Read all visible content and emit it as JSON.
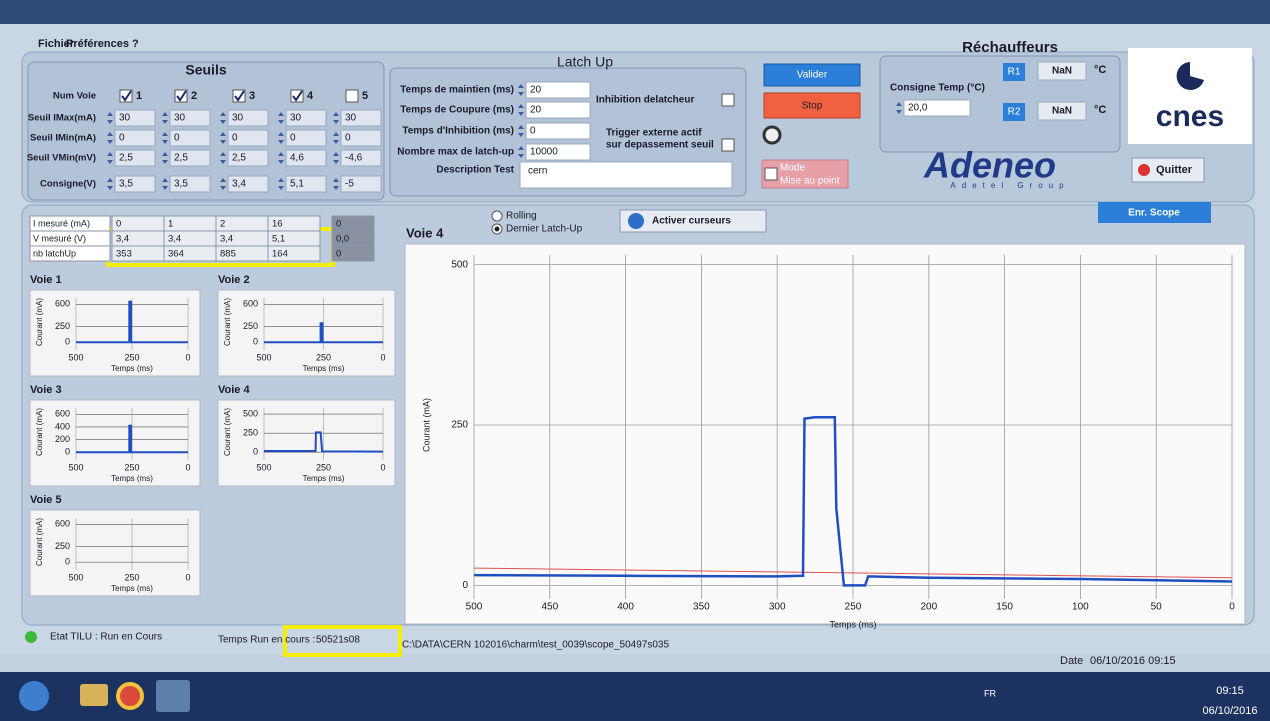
{
  "window": {
    "menu": [
      "Fichier",
      "Préférences",
      "?"
    ]
  },
  "seuils": {
    "title": "Seuils",
    "row_labels": [
      "Num Voie",
      "Seuil IMax(mA)",
      "Seuil IMin(mA)",
      "Seuil VMin(mV)",
      "Consigne(V)"
    ],
    "channels": [
      "1",
      "2",
      "3",
      "4",
      "5"
    ],
    "checked": [
      true,
      true,
      true,
      true,
      false
    ],
    "rows": [
      [
        "30",
        "30",
        "30",
        "30",
        "30"
      ],
      [
        "0",
        "0",
        "0",
        "0",
        "0"
      ],
      [
        "2,5",
        "2,5",
        "2,5",
        "4,6",
        "-4,6"
      ],
      [
        "3,5",
        "3,5",
        "3,4",
        "5,1",
        "-5"
      ]
    ]
  },
  "latch_up": {
    "title": "Latch Up",
    "fields": [
      {
        "label": "Temps de maintien (ms)",
        "value": "20"
      },
      {
        "label": "Temps de Coupure (ms)",
        "value": "20"
      },
      {
        "label": "Temps d'Inhibition (ms)",
        "value": "0"
      },
      {
        "label": "Nombre max de latch-up",
        "value": "10000"
      }
    ],
    "inhibition": {
      "label": "Inhibition delatcheur",
      "checked": false
    },
    "trigger": {
      "label": [
        "Trigger externe actif",
        "sur depassement seuil"
      ],
      "checked": false
    },
    "description_label": "Description Test",
    "description": "cern"
  },
  "controls": {
    "valider": "Valider",
    "stop": "Stop",
    "mode": [
      "Mode",
      "Mise au point"
    ],
    "quitter": "Quitter"
  },
  "rechauffeurs": {
    "title": "Réchauffeurs",
    "consigne_label": "Consigne Temp (°C)",
    "consigne": "20,0",
    "heaters": [
      {
        "name": "R1",
        "value": "NaN",
        "unit": "°C"
      },
      {
        "name": "R2",
        "value": "NaN",
        "unit": "°C"
      }
    ]
  },
  "logos": {
    "cnes": "cnes",
    "adeneo": "Adeneo",
    "adeneo_tagline": "Adetel Group"
  },
  "measures": {
    "row_labels": [
      "I mesuré (mA)",
      "V mesuré (V)",
      "nb latchUp"
    ],
    "rows": [
      [
        "0",
        "1",
        "2",
        "16",
        "0"
      ],
      [
        "3,4",
        "3,4",
        "3,4",
        "5,1",
        "0,0"
      ],
      [
        "353",
        "364",
        "885",
        "164",
        "0"
      ]
    ]
  },
  "mini_charts": [
    {
      "title": "Voie 1",
      "ylabel": "Courant (mA)",
      "xlabel": "Temps (ms)",
      "xlim": [
        500,
        0
      ],
      "ylim": [
        -60,
        700
      ],
      "xticks": [
        500,
        250,
        0
      ],
      "yticks": [
        0,
        250,
        600
      ],
      "trace": {
        "x": [
          500,
          262,
          262,
          254,
          254,
          0
        ],
        "y": [
          0,
          0,
          640,
          640,
          0,
          0
        ]
      }
    },
    {
      "title": "Voie 2",
      "ylabel": "Courant (mA)",
      "xlabel": "Temps (ms)",
      "xlim": [
        500,
        0
      ],
      "ylim": [
        -60,
        700
      ],
      "xticks": [
        500,
        250,
        0
      ],
      "yticks": [
        0,
        250,
        600
      ],
      "trace": {
        "x": [
          500,
          262,
          262,
          254,
          254,
          0
        ],
        "y": [
          0,
          0,
          300,
          300,
          0,
          0
        ]
      }
    },
    {
      "title": "Voie 3",
      "ylabel": "Courant (mA)",
      "xlabel": "Temps (ms)",
      "xlim": [
        500,
        0
      ],
      "ylim": [
        -60,
        700
      ],
      "xticks": [
        500,
        250,
        0
      ],
      "yticks": [
        0,
        200,
        400,
        600
      ],
      "trace": {
        "x": [
          500,
          262,
          262,
          254,
          254,
          0
        ],
        "y": [
          0,
          0,
          420,
          420,
          0,
          0
        ]
      }
    },
    {
      "title": "Voie 4",
      "ylabel": "Courant (mA)",
      "xlabel": "Temps (ms)",
      "xlim": [
        500,
        0
      ],
      "ylim": [
        -50,
        580
      ],
      "xticks": [
        500,
        250,
        0
      ],
      "yticks": [
        0,
        250,
        500
      ],
      "trace": {
        "x": [
          500,
          283,
          282,
          262,
          256,
          0
        ],
        "y": [
          15,
          15,
          260,
          260,
          10,
          8
        ]
      }
    },
    {
      "title": "Voie 5",
      "ylabel": "Courant (mA)",
      "xlabel": "Temps (ms)",
      "xlim": [
        500,
        0
      ],
      "ylim": [
        -60,
        700
      ],
      "xticks": [
        500,
        250,
        0
      ],
      "yticks": [
        0,
        250,
        600
      ]
    }
  ],
  "scope": {
    "title": "Voie 4",
    "modes": [
      "Rolling",
      "Dernier Latch-Up"
    ],
    "selected_mode": 1,
    "cursor_button": "Activer curseurs",
    "save_button": "Enr. Scope",
    "ylabel": "Courant (mA)",
    "xlabel": "Temps (ms)",
    "xlim": [
      500,
      0
    ],
    "ylim": [
      -15,
      515
    ],
    "xticks": [
      500,
      450,
      400,
      350,
      300,
      250,
      200,
      150,
      100,
      50,
      0
    ],
    "yticks": [
      0,
      250,
      500
    ],
    "trace": {
      "x": [
        500,
        400,
        300,
        283,
        282,
        275,
        262,
        261,
        256,
        242,
        240,
        200,
        100,
        0
      ],
      "y": [
        16,
        15,
        14,
        15,
        260,
        262,
        262,
        120,
        0,
        0,
        14,
        12,
        10,
        6
      ]
    },
    "threshold": {
      "x": [
        500,
        0
      ],
      "y": [
        27,
        12
      ]
    }
  },
  "status": {
    "state": "Etat TILU : Run en Cours",
    "run_time_label": "Temps Run en cours :",
    "run_time": "50521s08",
    "file": "C:\\DATA\\CERN 102016\\charm\\test_0039\\scope_50497s035",
    "date_label": "Date",
    "date": "06/10/2016 09:15"
  },
  "taskbar": {
    "language": "FR",
    "time": "09:15",
    "date": "06/10/2016"
  }
}
